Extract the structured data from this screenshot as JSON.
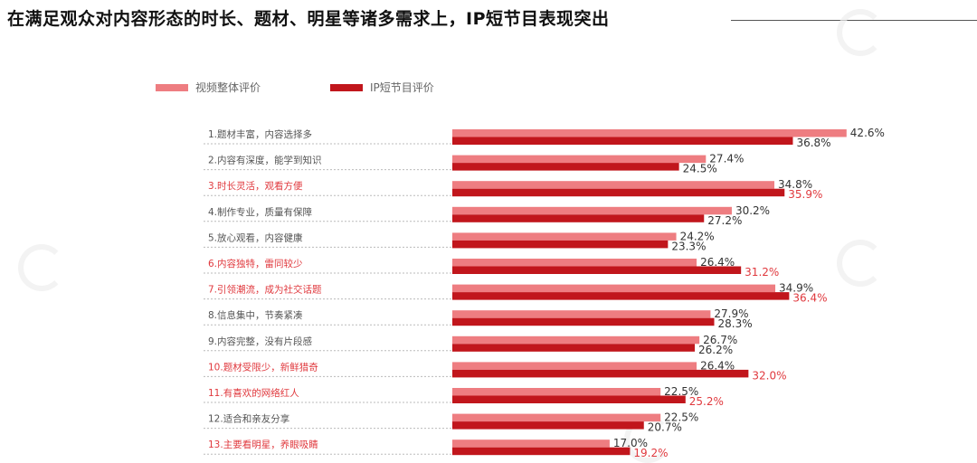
{
  "title": "在满足观众对内容形态的时长、题材、明星等诸多需求上，IP短节目表现突出",
  "colors": {
    "overall": "#ee7d81",
    "ip": "#c1161c",
    "highlight": "#e0393e",
    "text": "#555555"
  },
  "chart_data": {
    "type": "bar",
    "orientation": "horizontal",
    "categories": [
      "1.题材丰富，内容选择多",
      "2.内容有深度，能学到知识",
      "3.时长灵活，观看方便",
      "4.制作专业，质量有保障",
      "5.放心观看，内容健康",
      "6.内容独特，雷同较少",
      "7.引领潮流，成为社交话题",
      "8.信息集中，节奏紧凑",
      "9.内容完整，没有片段感",
      "10.题材受限少，新鲜猎奇",
      "11.有喜欢的网络红人",
      "12.适合和亲友分享",
      "13.主要看明星，养眼吸睛"
    ],
    "highlighted": [
      false,
      false,
      true,
      false,
      false,
      true,
      true,
      false,
      false,
      true,
      true,
      false,
      true
    ],
    "series": [
      {
        "name": "视频整体评价",
        "values": [
          42.6,
          27.4,
          34.8,
          30.2,
          24.2,
          26.4,
          34.9,
          27.9,
          26.7,
          26.4,
          22.5,
          22.5,
          17.0
        ]
      },
      {
        "name": "IP短节目评价",
        "values": [
          36.8,
          24.5,
          35.9,
          27.2,
          23.3,
          31.2,
          36.4,
          28.3,
          26.2,
          32.0,
          25.2,
          20.7,
          19.2
        ]
      }
    ],
    "unit": "%",
    "legend_position": "top-left"
  }
}
